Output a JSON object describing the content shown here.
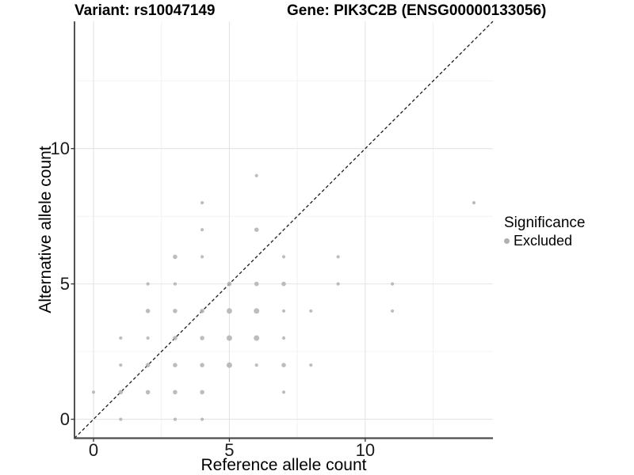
{
  "titles": {
    "variant": "Variant: rs10047149",
    "gene": "Gene: PIK3C2B (ENSG00000133056)"
  },
  "axes": {
    "x": {
      "label": "Reference allele count",
      "major_ticks": [
        0,
        5,
        10
      ],
      "minor_ticks": [
        2.5,
        7.5,
        12.5
      ],
      "tick_labels": [
        "0",
        "5",
        "10"
      ]
    },
    "y": {
      "label": "Alternative allele count",
      "major_ticks": [
        0,
        5,
        10
      ],
      "minor_ticks": [
        2.5,
        7.5,
        12.5
      ],
      "tick_labels": [
        "0",
        "5",
        "10"
      ]
    }
  },
  "legend": {
    "title": "Significance",
    "items": [
      {
        "label": "Excluded",
        "color": "#b0b0b0"
      }
    ]
  },
  "colors": {
    "point": "#b1b1b1",
    "grid_major": "#e4e4e4",
    "grid_minor": "#f0f0f0",
    "axis_line_left": "#1a1a1a",
    "axis_line_bottom": "#4d4d4d",
    "tick_mark": "#333333",
    "identity_line": "#1a1a1a"
  },
  "chart_data": {
    "type": "scatter",
    "title": "Variant: rs10047149 | Gene: PIK3C2B (ENSG00000133056)",
    "xlabel": "Reference allele count",
    "ylabel": "Alternative allele count",
    "xlim": [
      -0.7,
      14.7
    ],
    "ylim": [
      -0.7,
      14.7
    ],
    "grid": true,
    "identity_line": {
      "show": true,
      "style": "dashed",
      "slope": 1,
      "intercept": 0
    },
    "legend_position": "right",
    "series": [
      {
        "name": "Excluded",
        "color": "#b1b1b1",
        "points": [
          {
            "x": 0,
            "y": 1,
            "n": 1
          },
          {
            "x": 1,
            "y": 0,
            "n": 1
          },
          {
            "x": 1,
            "y": 1,
            "n": 2
          },
          {
            "x": 1,
            "y": 2,
            "n": 1
          },
          {
            "x": 1,
            "y": 3,
            "n": 1
          },
          {
            "x": 2,
            "y": 1,
            "n": 2
          },
          {
            "x": 2,
            "y": 2,
            "n": 2
          },
          {
            "x": 2,
            "y": 3,
            "n": 1
          },
          {
            "x": 2,
            "y": 4,
            "n": 2
          },
          {
            "x": 2,
            "y": 5,
            "n": 1
          },
          {
            "x": 3,
            "y": 0,
            "n": 1
          },
          {
            "x": 3,
            "y": 1,
            "n": 2
          },
          {
            "x": 3,
            "y": 2,
            "n": 2
          },
          {
            "x": 3,
            "y": 3,
            "n": 2
          },
          {
            "x": 3,
            "y": 4,
            "n": 2
          },
          {
            "x": 3,
            "y": 5,
            "n": 1
          },
          {
            "x": 3,
            "y": 6,
            "n": 2
          },
          {
            "x": 4,
            "y": 0,
            "n": 1
          },
          {
            "x": 4,
            "y": 1,
            "n": 2
          },
          {
            "x": 4,
            "y": 2,
            "n": 2
          },
          {
            "x": 4,
            "y": 3,
            "n": 2
          },
          {
            "x": 4,
            "y": 4,
            "n": 2
          },
          {
            "x": 4,
            "y": 6,
            "n": 1
          },
          {
            "x": 4,
            "y": 7,
            "n": 1
          },
          {
            "x": 4,
            "y": 8,
            "n": 1
          },
          {
            "x": 5,
            "y": 2,
            "n": 3
          },
          {
            "x": 5,
            "y": 3,
            "n": 3
          },
          {
            "x": 5,
            "y": 4,
            "n": 3
          },
          {
            "x": 5,
            "y": 5,
            "n": 2
          },
          {
            "x": 6,
            "y": 2,
            "n": 1
          },
          {
            "x": 6,
            "y": 3,
            "n": 3
          },
          {
            "x": 6,
            "y": 4,
            "n": 3
          },
          {
            "x": 6,
            "y": 5,
            "n": 2
          },
          {
            "x": 6,
            "y": 7,
            "n": 2
          },
          {
            "x": 6,
            "y": 9,
            "n": 1
          },
          {
            "x": 7,
            "y": 1,
            "n": 1
          },
          {
            "x": 7,
            "y": 2,
            "n": 2
          },
          {
            "x": 7,
            "y": 3,
            "n": 1
          },
          {
            "x": 7,
            "y": 4,
            "n": 1
          },
          {
            "x": 7,
            "y": 5,
            "n": 2
          },
          {
            "x": 7,
            "y": 6,
            "n": 1
          },
          {
            "x": 8,
            "y": 2,
            "n": 1
          },
          {
            "x": 8,
            "y": 4,
            "n": 1
          },
          {
            "x": 9,
            "y": 5,
            "n": 1
          },
          {
            "x": 9,
            "y": 6,
            "n": 1
          },
          {
            "x": 11,
            "y": 4,
            "n": 1
          },
          {
            "x": 11,
            "y": 5,
            "n": 1
          },
          {
            "x": 14,
            "y": 8,
            "n": 1
          }
        ]
      }
    ]
  }
}
